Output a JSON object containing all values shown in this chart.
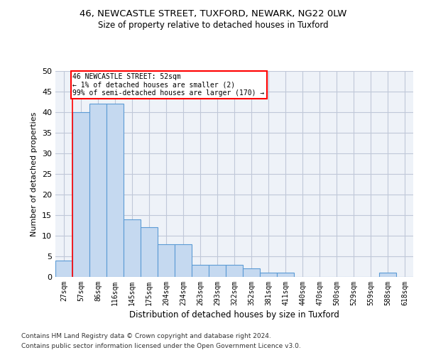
{
  "title1": "46, NEWCASTLE STREET, TUXFORD, NEWARK, NG22 0LW",
  "title2": "Size of property relative to detached houses in Tuxford",
  "xlabel": "Distribution of detached houses by size in Tuxford",
  "ylabel": "Number of detached properties",
  "bar_color": "#c5d9f0",
  "bar_edge_color": "#5b9bd5",
  "categories": [
    "27sqm",
    "57sqm",
    "86sqm",
    "116sqm",
    "145sqm",
    "175sqm",
    "204sqm",
    "234sqm",
    "263sqm",
    "293sqm",
    "322sqm",
    "352sqm",
    "381sqm",
    "411sqm",
    "440sqm",
    "470sqm",
    "500sqm",
    "529sqm",
    "559sqm",
    "588sqm",
    "618sqm"
  ],
  "values": [
    4,
    40,
    42,
    42,
    14,
    12,
    8,
    8,
    3,
    3,
    3,
    2,
    1,
    1,
    0,
    0,
    0,
    0,
    0,
    1,
    0
  ],
  "ylim": [
    0,
    50
  ],
  "yticks": [
    0,
    5,
    10,
    15,
    20,
    25,
    30,
    35,
    40,
    45,
    50
  ],
  "annotation_text": "46 NEWCASTLE STREET: 52sqm\n← 1% of detached houses are smaller (2)\n99% of semi-detached houses are larger (170) →",
  "vline_x": 0.5,
  "grid_color": "#c0c8d8",
  "bg_color": "#eef2f8",
  "footer1": "Contains HM Land Registry data © Crown copyright and database right 2024.",
  "footer2": "Contains public sector information licensed under the Open Government Licence v3.0."
}
